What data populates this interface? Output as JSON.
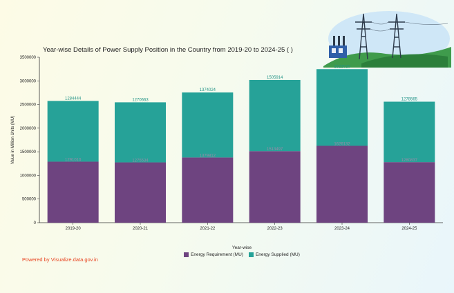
{
  "colors": {
    "requirement": "#6e4480",
    "supplied": "#26a298",
    "supplied_label": "#1f9286",
    "requirement_label": "#9a8aa8",
    "brand": "#e8421f"
  },
  "icons": [
    "power-transmission-tower-icon",
    "power-substation-icon"
  ],
  "powered_by": "Powered by Visualize.data.gov.in",
  "chart_data": {
    "type": "bar",
    "stacked": true,
    "title": "Year-wise Details of Power Supply Position in the Country from 2019-20 to 2024-25 ( )",
    "xlabel": "Year-wise",
    "ylabel": "Value in Million Units (MU)",
    "ylim": [
      0,
      3500000
    ],
    "yticks": [
      0,
      500000,
      1000000,
      1500000,
      2000000,
      2500000,
      3000000,
      3500000
    ],
    "grid": false,
    "legend_position": "bottom",
    "categories": [
      "2019-20",
      "2020-21",
      "2021-22",
      "2022-23",
      "2023-24",
      "2024-25"
    ],
    "series": [
      {
        "name": "Energy Requirement (MU)",
        "values": [
          1291010,
          1275534,
          1379812,
          1513497,
          1626132,
          1280837
        ]
      },
      {
        "name": "Energy Supplied (MU)",
        "values": [
          1284444,
          1270663,
          1374024,
          1505914,
          1622020,
          1278565
        ]
      }
    ]
  }
}
